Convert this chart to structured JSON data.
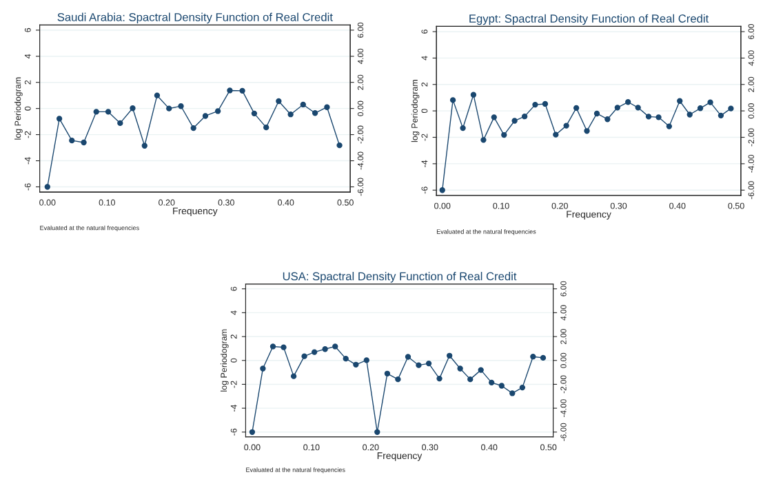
{
  "chart_data": [
    {
      "type": "line",
      "title": "Saudi Arabia: Spactral Density Function of Real Credit",
      "xlabel": "Frequency",
      "ylabel": "log Periodogram",
      "annotations": [
        "Evaluated at the natural frequencies"
      ],
      "color": "#1a476f",
      "marker": "circle",
      "grid": "y",
      "x": [
        0.0,
        0.02,
        0.041,
        0.061,
        0.082,
        0.102,
        0.122,
        0.143,
        0.163,
        0.184,
        0.204,
        0.224,
        0.245,
        0.265,
        0.286,
        0.306,
        0.327,
        0.347,
        0.367,
        0.388,
        0.408,
        0.429,
        0.449,
        0.469,
        0.49
      ],
      "values": [
        -6,
        -0.78,
        -2.45,
        -2.6,
        -0.25,
        -0.25,
        -1.12,
        0.02,
        -2.85,
        1.0,
        0.0,
        0.18,
        -1.5,
        -0.57,
        -0.2,
        1.38,
        1.36,
        -0.38,
        -1.45,
        0.56,
        -0.45,
        0.3,
        -0.35,
        0.1,
        -2.82
      ],
      "xlim": [
        -0.013,
        0.508
      ],
      "ylim": [
        -6.4,
        6.4
      ],
      "xticks": [
        {
          "value": 0,
          "label": "0.00"
        },
        {
          "value": 0.1,
          "label": "0.10"
        },
        {
          "value": 0.2,
          "label": "0.20"
        },
        {
          "value": 0.3,
          "label": "0.30"
        },
        {
          "value": 0.4,
          "label": "0.40"
        },
        {
          "value": 0.5,
          "label": "0.50"
        }
      ],
      "yticks": [
        -6,
        -4,
        -2,
        0,
        2,
        4,
        6
      ],
      "y2lim": [
        -6.4,
        6.4
      ],
      "y2ticks": [
        {
          "value": -6,
          "label": "-6.00"
        },
        {
          "value": -4,
          "label": "-4.00"
        },
        {
          "value": -2,
          "label": "-2.00"
        },
        {
          "value": 0,
          "label": "0.00"
        },
        {
          "value": 2,
          "label": "2.00"
        },
        {
          "value": 4,
          "label": "4.00"
        },
        {
          "value": 6,
          "label": "6.00"
        }
      ]
    },
    {
      "type": "line",
      "title": "Egypt: Spactral Density Function of Real Credit",
      "xlabel": "Frequency",
      "ylabel": "log Periodogram",
      "annotations": [
        "Evaluated at the natural frequencies"
      ],
      "color": "#1a476f",
      "marker": "circle",
      "grid": "y",
      "x": [
        0.0,
        0.018,
        0.035,
        0.053,
        0.07,
        0.088,
        0.105,
        0.123,
        0.14,
        0.158,
        0.175,
        0.193,
        0.211,
        0.228,
        0.246,
        0.263,
        0.281,
        0.298,
        0.316,
        0.333,
        0.351,
        0.368,
        0.386,
        0.404,
        0.421,
        0.439,
        0.456,
        0.474,
        0.491
      ],
      "values": [
        -6,
        0.82,
        -1.3,
        1.22,
        -2.2,
        -0.48,
        -1.82,
        -0.75,
        -0.42,
        0.47,
        0.53,
        -1.8,
        -1.12,
        0.22,
        -1.52,
        -0.2,
        -0.63,
        0.25,
        0.67,
        0.25,
        -0.43,
        -0.48,
        -1.17,
        0.75,
        -0.28,
        0.2,
        0.65,
        -0.35,
        0.18
      ],
      "xlim": [
        -0.01,
        0.508
      ],
      "ylim": [
        -6.4,
        6.4
      ],
      "xticks": [
        {
          "value": 0,
          "label": "0.00"
        },
        {
          "value": 0.1,
          "label": "0.10"
        },
        {
          "value": 0.2,
          "label": "0.20"
        },
        {
          "value": 0.3,
          "label": "0.30"
        },
        {
          "value": 0.4,
          "label": "0.40"
        },
        {
          "value": 0.5,
          "label": "0.50"
        }
      ],
      "yticks": [
        -6,
        -4,
        -2,
        0,
        2,
        4,
        6
      ],
      "y2lim": [
        -6.4,
        6.4
      ],
      "y2ticks": [
        {
          "value": -6,
          "label": "-6.00"
        },
        {
          "value": -4,
          "label": "-4.00"
        },
        {
          "value": -2,
          "label": "-2.00"
        },
        {
          "value": 0,
          "label": "0.00"
        },
        {
          "value": 2,
          "label": "2.00"
        },
        {
          "value": 4,
          "label": "4.00"
        },
        {
          "value": 6,
          "label": "6.00"
        }
      ]
    },
    {
      "type": "line",
      "title": "USA: Spactral Density Function of Real Credit",
      "xlabel": "Frequency",
      "ylabel": "log Periodogram",
      "annotations": [
        "Evaluated at the natural frequencies"
      ],
      "color": "#1a476f",
      "marker": "circle",
      "grid": "y",
      "x": [
        0.0,
        0.018,
        0.035,
        0.053,
        0.07,
        0.088,
        0.105,
        0.123,
        0.14,
        0.158,
        0.175,
        0.193,
        0.211,
        0.228,
        0.246,
        0.263,
        0.281,
        0.298,
        0.316,
        0.333,
        0.351,
        0.368,
        0.386,
        0.404,
        0.421,
        0.439,
        0.456,
        0.474,
        0.491
      ],
      "values": [
        -6,
        -0.68,
        1.17,
        1.1,
        -1.32,
        0.35,
        0.7,
        0.95,
        1.17,
        0.15,
        -0.35,
        0.02,
        -6,
        -1.1,
        -1.58,
        0.3,
        -0.4,
        -0.25,
        -1.52,
        0.4,
        -0.68,
        -1.58,
        -0.8,
        -1.85,
        -2.12,
        -2.75,
        -2.27,
        0.32,
        0.22
      ],
      "xlim": [
        -0.011,
        0.508
      ],
      "ylim": [
        -6.4,
        6.4
      ],
      "xticks": [
        {
          "value": 0,
          "label": "0.00"
        },
        {
          "value": 0.1,
          "label": "0.10"
        },
        {
          "value": 0.2,
          "label": "0.20"
        },
        {
          "value": 0.3,
          "label": "0.30"
        },
        {
          "value": 0.4,
          "label": "0.40"
        },
        {
          "value": 0.5,
          "label": "0.50"
        }
      ],
      "yticks": [
        -6,
        -4,
        -2,
        0,
        2,
        4,
        6
      ],
      "y2lim": [
        -6.4,
        6.4
      ],
      "y2ticks": [
        {
          "value": -6,
          "label": "-6.00"
        },
        {
          "value": -4,
          "label": "-4.00"
        },
        {
          "value": -2,
          "label": "-2.00"
        },
        {
          "value": 0,
          "label": "0.00"
        },
        {
          "value": 2,
          "label": "2.00"
        },
        {
          "value": 4,
          "label": "4.00"
        },
        {
          "value": 6,
          "label": "6.00"
        }
      ]
    }
  ]
}
